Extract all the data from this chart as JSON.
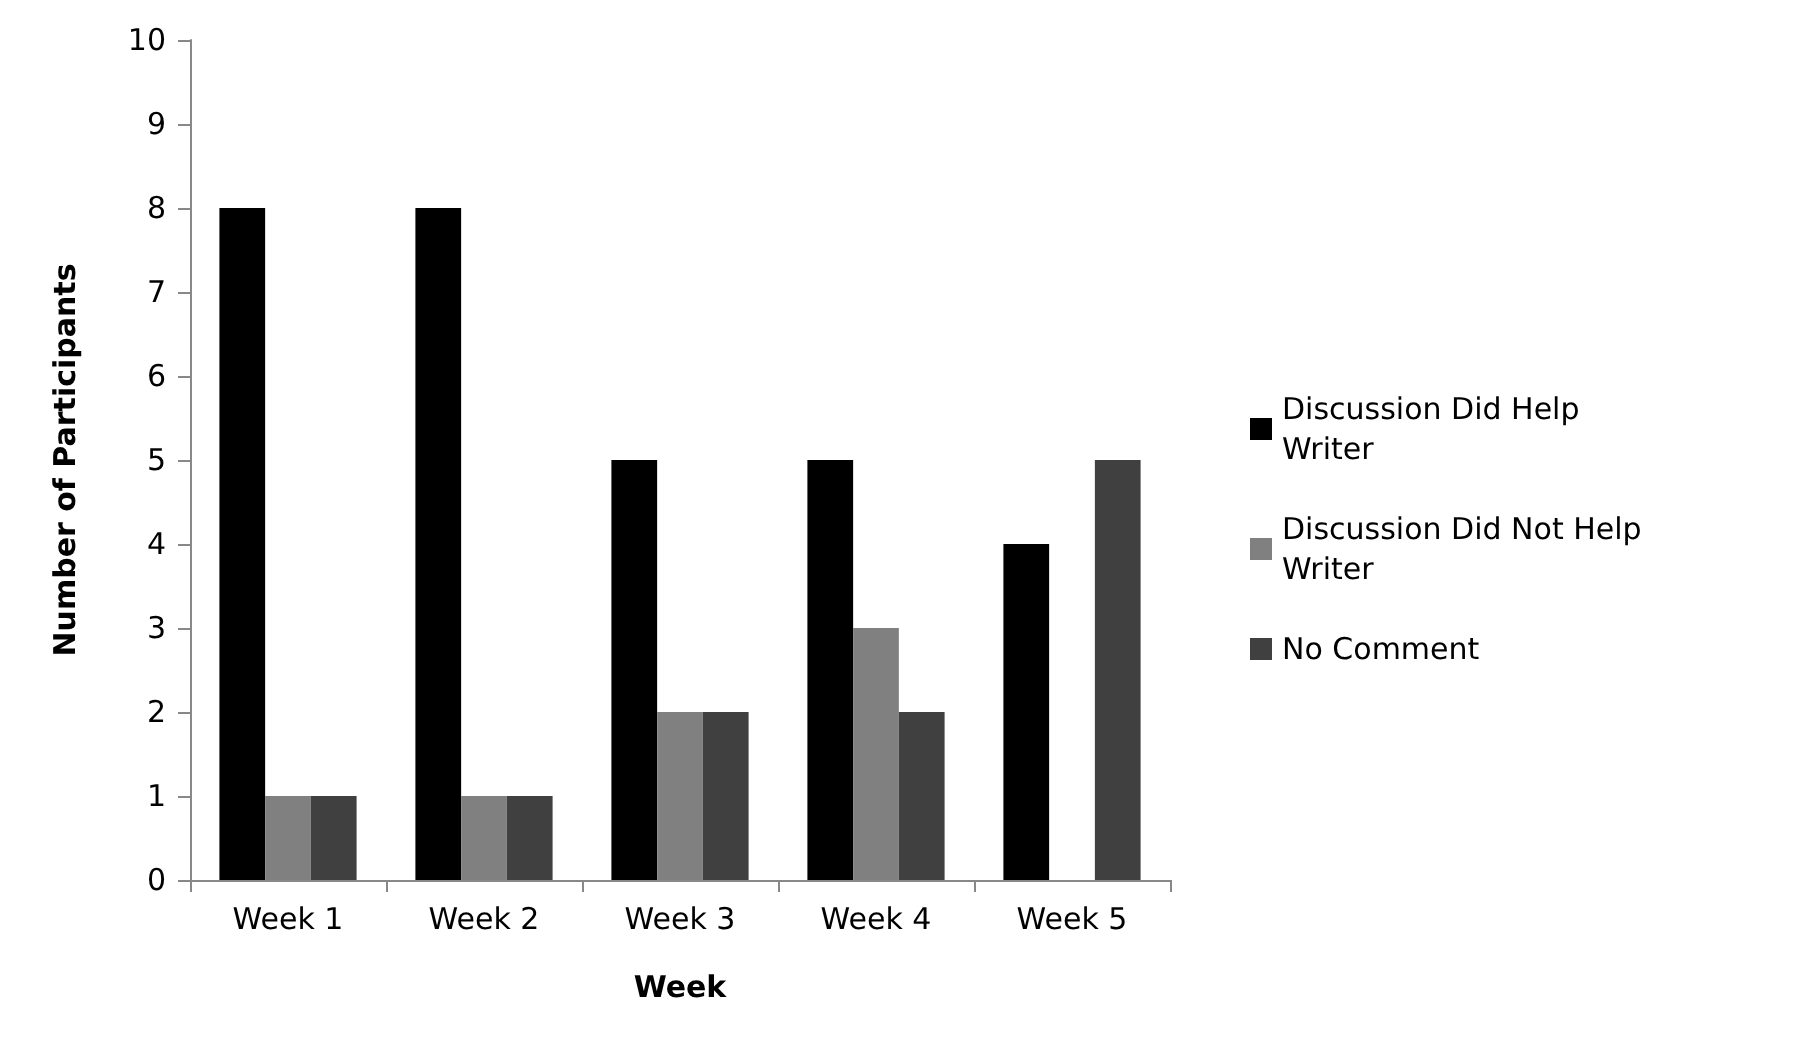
{
  "chart_data": {
    "type": "bar",
    "xlabel": "Week",
    "ylabel": "Number of Participants",
    "categories": [
      "Week 1",
      "Week 2",
      "Week 3",
      "Week 4",
      "Week 5"
    ],
    "series": [
      {
        "name": "Discussion Did Help Writer",
        "color": "#000000",
        "values": [
          8,
          8,
          5,
          5,
          4
        ]
      },
      {
        "name": "Discussion Did Not Help Writer",
        "color": "#808080",
        "values": [
          1,
          1,
          2,
          3,
          0
        ]
      },
      {
        "name": "No Comment",
        "color": "#404040",
        "values": [
          1,
          1,
          2,
          2,
          5
        ]
      }
    ],
    "ylim": [
      0,
      10
    ],
    "yticks": [
      0,
      1,
      2,
      3,
      4,
      5,
      6,
      7,
      8,
      9,
      10
    ],
    "grid": false,
    "legend": "right"
  }
}
